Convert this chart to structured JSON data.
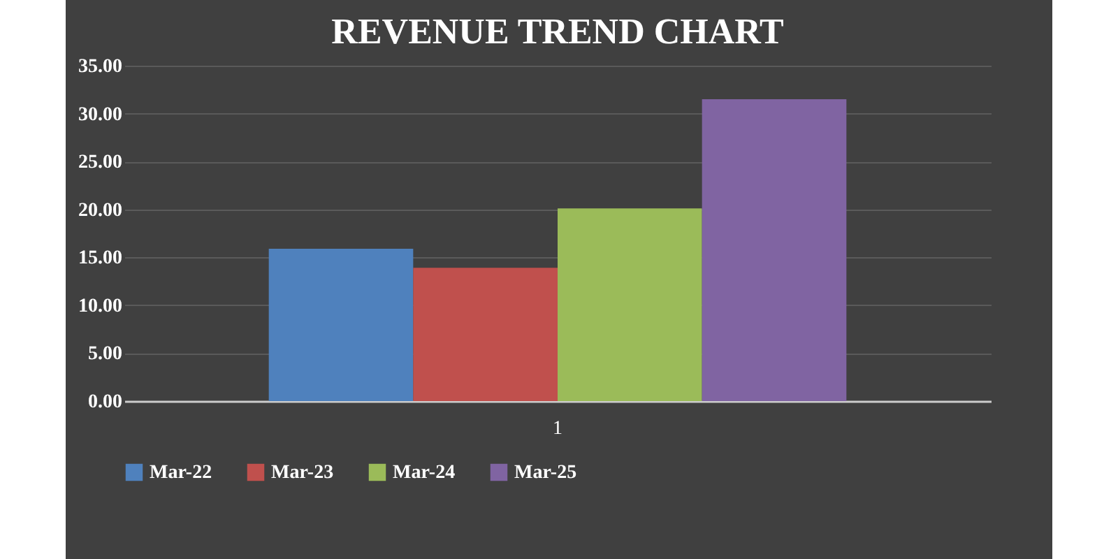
{
  "chart_data": {
    "type": "bar",
    "title": "REVENUE TREND CHART",
    "categories": [
      "1"
    ],
    "series": [
      {
        "name": "Mar-22",
        "color": "#4f81bd",
        "values": [
          15.9
        ]
      },
      {
        "name": "Mar-23",
        "color": "#c0504d",
        "values": [
          13.9
        ]
      },
      {
        "name": "Mar-24",
        "color": "#9bbb59",
        "values": [
          20.1
        ]
      },
      {
        "name": "Mar-25",
        "color": "#8064a2",
        "values": [
          31.5
        ]
      }
    ],
    "ylim": [
      0,
      35
    ],
    "yticks": [
      {
        "value": 0,
        "label": "0.00"
      },
      {
        "value": 5,
        "label": "5.00"
      },
      {
        "value": 10,
        "label": "10.00"
      },
      {
        "value": 15,
        "label": "15.00"
      },
      {
        "value": 20,
        "label": "20.00"
      },
      {
        "value": 25,
        "label": "25.00"
      },
      {
        "value": 30,
        "label": "30.00"
      },
      {
        "value": 35,
        "label": "35.00"
      }
    ],
    "grid": "y",
    "legend": "bottom"
  }
}
